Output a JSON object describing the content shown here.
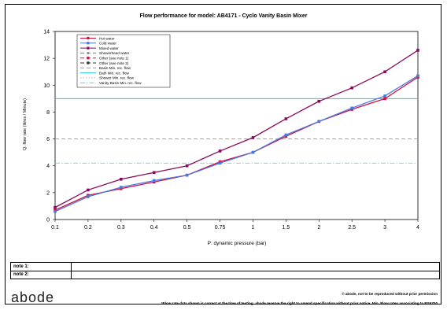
{
  "chart_data": {
    "type": "line",
    "title": "Flow performance for model: AB4171 - Cyclo Vanity Basin Mixer",
    "xlabel": "P: dynamic pressure (bar)",
    "ylabel": "Q: flow rate (litres / Minute)",
    "categories": [
      "0.1",
      "0.2",
      "0.3",
      "0.4",
      "0.5",
      "0.75",
      "1",
      "1.5",
      "2",
      "2.5",
      "3",
      "4"
    ],
    "ylim": [
      0,
      14
    ],
    "yticks": [
      0,
      2,
      4,
      6,
      8,
      10,
      12,
      14
    ],
    "grid": false,
    "legend_position": "top-left",
    "series": [
      {
        "name": "Hot water",
        "color": "#d0103a",
        "marker": "square",
        "values": [
          0.7,
          1.8,
          2.3,
          2.8,
          3.3,
          4.3,
          5.0,
          6.2,
          7.3,
          8.2,
          9.0,
          10.6
        ]
      },
      {
        "name": "Cold water",
        "color": "#4a78e0",
        "marker": "square",
        "values": [
          0.6,
          1.7,
          2.4,
          2.9,
          3.3,
          4.2,
          5.0,
          6.3,
          7.3,
          8.3,
          9.2,
          10.7
        ]
      },
      {
        "name": "Mixed water",
        "color": "#8a0a5e",
        "marker": "square",
        "values": [
          0.9,
          2.2,
          3.0,
          3.5,
          4.0,
          5.1,
          6.1,
          7.5,
          8.8,
          9.8,
          11.0,
          12.6
        ]
      }
    ],
    "reference_lines": [
      {
        "name": "Basin Min. rec. flow",
        "value": 6,
        "color": "#999999",
        "style": "dashed"
      },
      {
        "name": "Bath Min. rec. flow",
        "value": 9,
        "color": "#22c4d6",
        "style": "solid"
      },
      {
        "name": "Vanity Basin Min. rec. flow",
        "value": 4.2,
        "color": "#55d8e4",
        "style": "dashdot"
      }
    ],
    "legend_entries": [
      {
        "name": "Hot water",
        "color": "#d0103a",
        "style": "solid",
        "marker": "square"
      },
      {
        "name": "Cold water",
        "color": "#4a78e0",
        "style": "solid",
        "marker": "square"
      },
      {
        "name": "Mixed water",
        "color": "#8a0a5e",
        "style": "solid",
        "marker": "square"
      },
      {
        "name": "Showerhead water",
        "color": "#777777",
        "style": "dashed",
        "marker": "dot"
      },
      {
        "name": "Other (see note 1)",
        "color": "#d0103a",
        "style": "dashed",
        "marker": "square"
      },
      {
        "name": "Other (see note 2)",
        "color": "#333333",
        "style": "dashed",
        "marker": "square"
      },
      {
        "name": "Basin Min. rec. flow",
        "color": "#999999",
        "style": "dashed",
        "marker": "none"
      },
      {
        "name": "Bath Min. rec. flow",
        "color": "#22c4d6",
        "style": "solid",
        "marker": "none"
      },
      {
        "name": "Shower Min. rec. flow",
        "color": "#bbbbbb",
        "style": "dotted",
        "marker": "none"
      },
      {
        "name": "Vanity Basin Min. rec. flow",
        "color": "#55d8e4",
        "style": "dashdot",
        "marker": "none"
      }
    ]
  },
  "notes": {
    "note1_label": "note 1:",
    "note2_label": "note 2:"
  },
  "brand": {
    "logo": "abode"
  },
  "footer": {
    "line1": "© abode, not to be reproduced without prior permission",
    "line2": "*Flow rate data shown is correct at the time of testing. abode reserve the right to amend specification without prior notice. Min. Flow rates associating to BS6700"
  }
}
